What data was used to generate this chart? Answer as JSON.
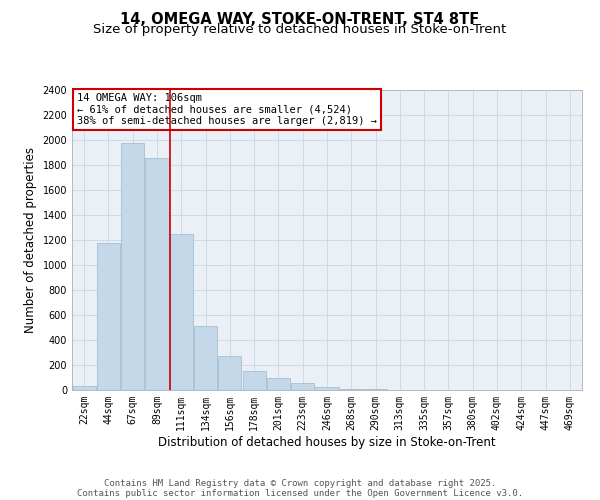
{
  "title_line1": "14, OMEGA WAY, STOKE-ON-TRENT, ST4 8TF",
  "title_line2": "Size of property relative to detached houses in Stoke-on-Trent",
  "xlabel": "Distribution of detached houses by size in Stoke-on-Trent",
  "ylabel": "Number of detached properties",
  "categories": [
    "22sqm",
    "44sqm",
    "67sqm",
    "89sqm",
    "111sqm",
    "134sqm",
    "156sqm",
    "178sqm",
    "201sqm",
    "223sqm",
    "246sqm",
    "268sqm",
    "290sqm",
    "313sqm",
    "335sqm",
    "357sqm",
    "380sqm",
    "402sqm",
    "424sqm",
    "447sqm",
    "469sqm"
  ],
  "values": [
    30,
    1175,
    1975,
    1860,
    1250,
    510,
    270,
    155,
    95,
    55,
    25,
    10,
    5,
    3,
    2,
    1,
    0,
    0,
    0,
    0,
    0
  ],
  "bar_color": "#c5d8ea",
  "bar_edge_color": "#9ab8cc",
  "red_line_x": 3.55,
  "annotation_text": "14 OMEGA WAY: 106sqm\n← 61% of detached houses are smaller (4,524)\n38% of semi-detached houses are larger (2,819) →",
  "annotation_box_facecolor": "#ffffff",
  "annotation_box_edgecolor": "#cc0000",
  "red_line_color": "#cc0000",
  "ylim": [
    0,
    2400
  ],
  "yticks": [
    0,
    200,
    400,
    600,
    800,
    1000,
    1200,
    1400,
    1600,
    1800,
    2000,
    2200,
    2400
  ],
  "grid_color": "#c8d8e4",
  "bg_color": "#eaf0f5",
  "footer_line1": "Contains HM Land Registry data © Crown copyright and database right 2025.",
  "footer_line2": "Contains public sector information licensed under the Open Government Licence v3.0.",
  "title1_fontsize": 10.5,
  "title2_fontsize": 9.5,
  "axis_label_fontsize": 8.5,
  "tick_fontsize": 7,
  "annotation_fontsize": 7.5,
  "footer_fontsize": 6.5
}
